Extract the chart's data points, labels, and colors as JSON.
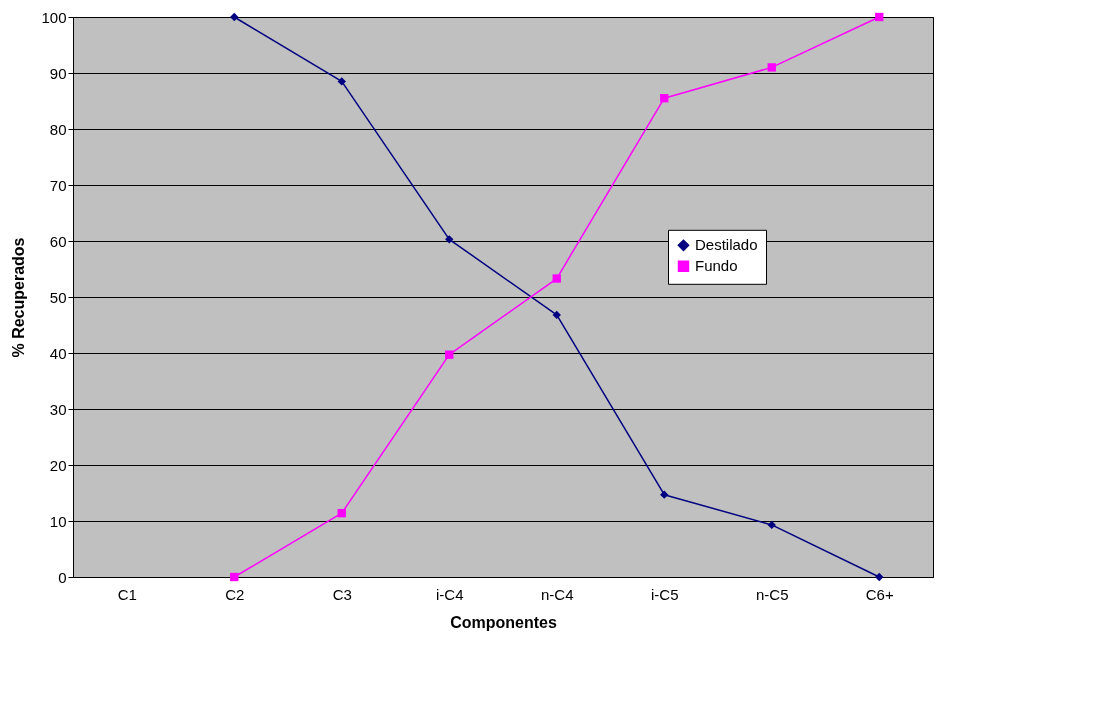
{
  "chart_data": {
    "type": "line",
    "xlabel": "Componentes",
    "ylabel": "% Recuperados",
    "categories": [
      "C1",
      "C2",
      "C3",
      "i-C4",
      "n-C4",
      "i-C5",
      "n-C5",
      "C6+"
    ],
    "series": [
      {
        "name": "Destilado",
        "color": "#000080",
        "marker": "diamond",
        "values": [
          null,
          100,
          88.5,
          60.3,
          46.8,
          14.7,
          9.3,
          0
        ]
      },
      {
        "name": "Fundo",
        "color": "#ff00ff",
        "marker": "square",
        "values": [
          null,
          0,
          11.4,
          39.7,
          53.3,
          85.5,
          91,
          100
        ]
      }
    ],
    "ylim": [
      0,
      100
    ],
    "yticks": [
      0,
      10,
      20,
      30,
      40,
      50,
      60,
      70,
      80,
      90,
      100
    ],
    "grid": "y",
    "legend": "right",
    "line_style": "solid"
  }
}
